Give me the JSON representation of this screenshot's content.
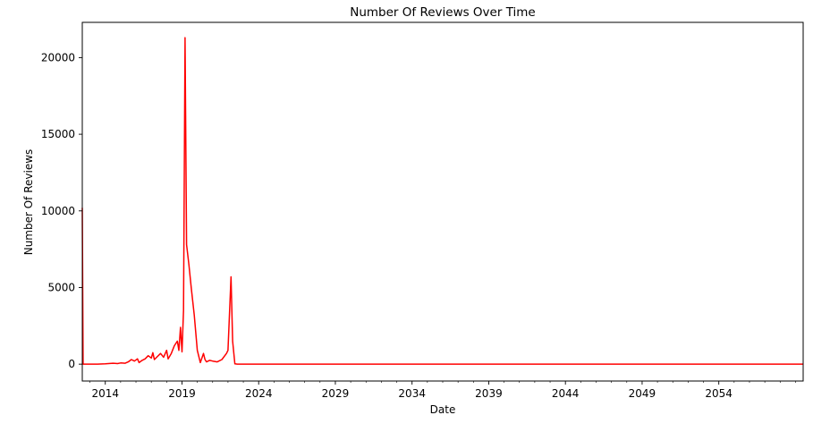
{
  "chart_data": {
    "type": "line",
    "title": "Number Of Reviews Over Time",
    "xlabel": "Date",
    "ylabel": "Number Of Reviews",
    "xlim": [
      2012.5,
      2059.5
    ],
    "ylim": [
      -1100,
      22300
    ],
    "x_ticks": [
      "2014",
      "2019",
      "2024",
      "2029",
      "2034",
      "2039",
      "2044",
      "2049",
      "2054"
    ],
    "y_ticks": [
      "0",
      "5000",
      "10000",
      "15000",
      "20000"
    ],
    "x_tick_values": [
      2014,
      2019,
      2024,
      2029,
      2034,
      2039,
      2044,
      2049,
      2054
    ],
    "y_tick_values": [
      0,
      5000,
      10000,
      15000,
      20000
    ],
    "grid": false,
    "series": [
      {
        "color": "#ff0000",
        "x": [
          2012.5,
          2012.55,
          2013.0,
          2013.5,
          2014.0,
          2014.5,
          2014.8,
          2015.0,
          2015.3,
          2015.5,
          2015.7,
          2015.9,
          2016.1,
          2016.2,
          2016.4,
          2016.6,
          2016.8,
          2017.0,
          2017.1,
          2017.2,
          2017.4,
          2017.6,
          2017.8,
          2018.0,
          2018.1,
          2018.3,
          2018.5,
          2018.7,
          2018.8,
          2018.9,
          2019.0,
          2019.1,
          2019.2,
          2019.3,
          2019.45,
          2019.6,
          2019.8,
          2020.0,
          2020.2,
          2020.4,
          2020.5,
          2020.6,
          2020.8,
          2021.0,
          2021.3,
          2021.6,
          2021.9,
          2022.0,
          2022.2,
          2022.3,
          2022.45,
          2022.6,
          2023.0,
          2025.0,
          2030.0,
          2035.0,
          2040.0,
          2045.0,
          2050.0,
          2055.0,
          2059.5
        ],
        "y": [
          10200,
          0,
          0,
          0,
          20,
          60,
          40,
          80,
          60,
          150,
          300,
          200,
          350,
          100,
          250,
          350,
          550,
          400,
          750,
          300,
          500,
          700,
          450,
          900,
          350,
          700,
          1200,
          1500,
          900,
          2400,
          800,
          3500,
          21300,
          7800,
          6500,
          5000,
          3200,
          900,
          100,
          700,
          300,
          150,
          250,
          200,
          150,
          300,
          700,
          900,
          5700,
          1500,
          20,
          0,
          0,
          0,
          0,
          0,
          0,
          0,
          0,
          0,
          0
        ]
      }
    ]
  }
}
